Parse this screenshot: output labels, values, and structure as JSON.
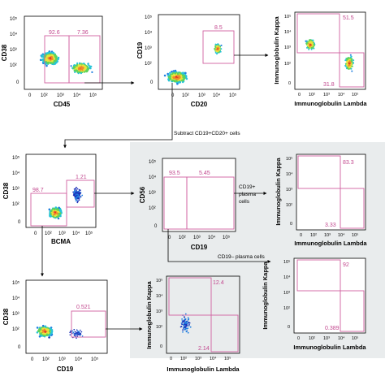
{
  "colors": {
    "gate": "#d060a0",
    "gate_text": "#c2478e",
    "arrow": "#000000",
    "highlight_bg": "#e9eced",
    "density": [
      "#1b2fb8",
      "#1f7fe0",
      "#27c4d8",
      "#5fd35a",
      "#e9e33b",
      "#f08a2b",
      "#e0352a"
    ]
  },
  "tick_labels": {
    "standard": [
      "10⁵",
      "10⁴",
      "10³",
      "10²",
      "0"
    ],
    "x_standard": [
      "0",
      "10²",
      "10³",
      "10⁴",
      "10⁵"
    ]
  },
  "panels": {
    "p1": {
      "x_label": "CD45",
      "y_label": "CD38",
      "gates": [
        "92.6",
        "7.36"
      ]
    },
    "p2": {
      "x_label": "CD20",
      "y_label": "CD19",
      "gates": [
        "8.5"
      ]
    },
    "p3": {
      "x_label": "Immunoglobulin Lambda",
      "y_label": "Immunoglobulin Kappa",
      "gates": [
        "51.5",
        "31.8"
      ]
    },
    "p4": {
      "x_label": "BCMA",
      "y_label": "CD38",
      "gates": [
        "98.7",
        "1.21"
      ]
    },
    "p5": {
      "x_label": "CD19",
      "y_label": "CD56",
      "gates": [
        "93.5",
        "5.45"
      ]
    },
    "p6": {
      "x_label": "Immunoglobulin Lambda",
      "y_label": "Immunoglobulin Kappa",
      "gates": [
        "83.3",
        "3.33"
      ]
    },
    "p7": {
      "x_label": "Immunoglobulin Lambda",
      "y_label": "Immunoglobulin Kappa",
      "gates": [
        "92",
        "0.389"
      ]
    },
    "p8": {
      "x_label": "CD19",
      "y_label": "CD38",
      "gates": [
        "0.521"
      ]
    },
    "p9": {
      "x_label": "Immunoglobulin Lambda",
      "y_label": "Immunoglobulin Kappa",
      "gates": [
        "12.4",
        "2.14"
      ]
    }
  },
  "annotations": {
    "subtract": "Subtract CD19+CD20+ cells",
    "cd19pos_line1": "CD19+",
    "cd19pos_line2": "plasma",
    "cd19pos_line3": "cells",
    "cd19neg": "CD19– plasma cells"
  }
}
